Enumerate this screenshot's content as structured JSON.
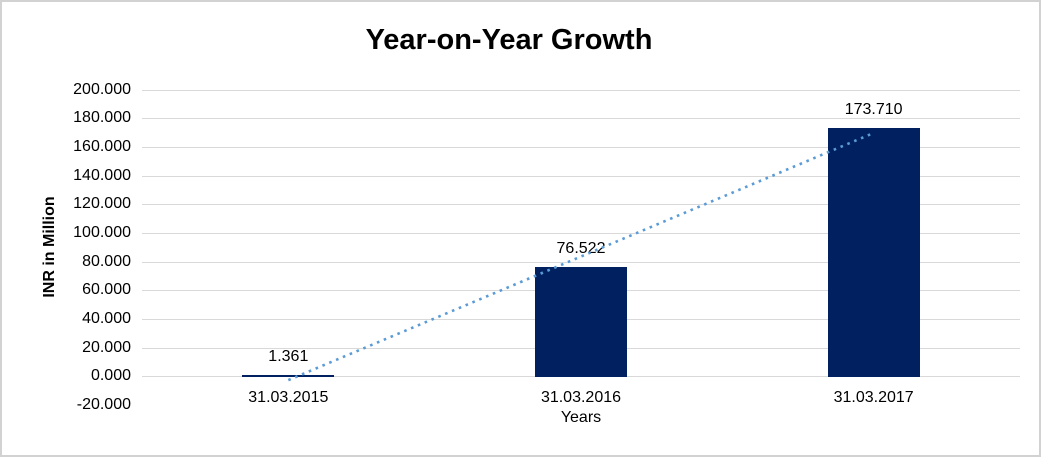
{
  "chart_data": {
    "type": "bar",
    "title": "Year-on-Year Growth",
    "xlabel": "Years",
    "ylabel": "INR in Million",
    "categories": [
      "31.03.2015",
      "31.03.2016",
      "31.03.2017"
    ],
    "values": [
      1.361,
      76.522,
      173.71
    ],
    "data_labels": [
      "1.361",
      "76.522",
      "173.710"
    ],
    "ylim": [
      -20,
      200
    ],
    "ytick_step": 20,
    "ytick_labels": [
      "200.000",
      "180.000",
      "160.000",
      "140.000",
      "120.000",
      "100.000",
      "80.000",
      "60.000",
      "40.000",
      "20.000",
      "0.000",
      "-20.000"
    ],
    "grid": true,
    "legend": "none",
    "trendline": {
      "type": "linear",
      "style": "dotted",
      "start_value": -2.31,
      "end_value": 170.03,
      "color": "#5B9BD5"
    },
    "colors": {
      "bar": "#002060",
      "gridline": "#D9D9D9",
      "trendline": "#5B9BD5",
      "text": "#000000",
      "background": "#FFFFFF",
      "border": "#D2D2D2"
    }
  }
}
